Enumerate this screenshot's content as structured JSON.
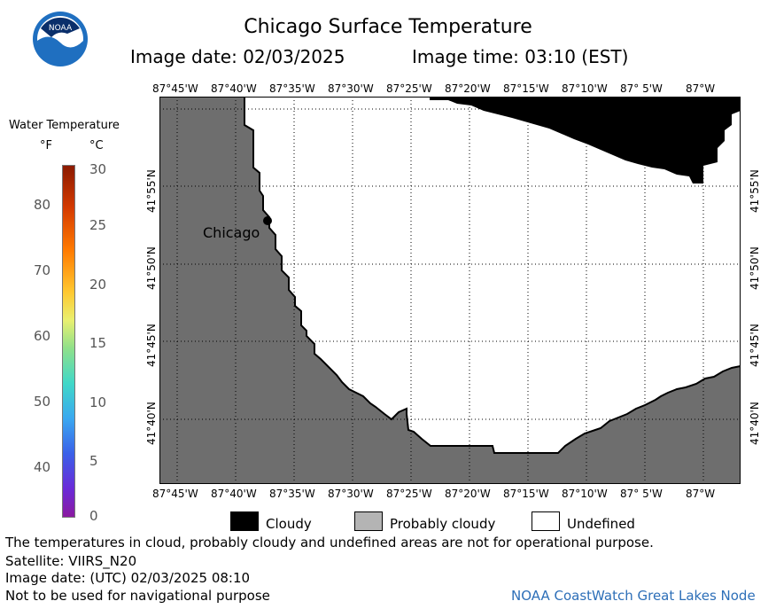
{
  "header": {
    "title": "Chicago Surface Temperature",
    "image_date": "Image date: 02/03/2025",
    "image_time": "Image time: 03:10 (EST)",
    "logo_text": "NOAA"
  },
  "map": {
    "lon_labels": [
      "87°45'W",
      "87°40'W",
      "87°35'W",
      "87°30'W",
      "87°25'W",
      "87°20'W",
      "87°15'W",
      "87°10'W",
      "87° 5'W",
      "87°W"
    ],
    "lat_labels": [
      "41°55'N",
      "41°50'N",
      "41°45'N",
      "41°40'N"
    ],
    "city_label": "Chicago",
    "land_color": "#6e6e6e",
    "cloud_color": "#000000",
    "undefined_color": "#ffffff"
  },
  "colorbar": {
    "title": "Water Temperature",
    "unit_f": "°F",
    "unit_c": "°C",
    "f_ticks": [
      "80",
      "70",
      "60",
      "50",
      "40"
    ],
    "c_ticks": [
      "30",
      "25",
      "20",
      "15",
      "10",
      "5",
      "0"
    ]
  },
  "legend": {
    "cloudy": "Cloudy",
    "probably_cloudy": "Probably cloudy",
    "undefined": "Undefined"
  },
  "footer": {
    "note": "The temperatures in cloud, probably cloudy and undefined areas are not for operational purpose.",
    "satellite": "Satellite: VIIRS_N20",
    "utc_date": "Image date: (UTC) 02/03/2025  08:10",
    "nav_warning": "Not to be used for navigational purpose",
    "credit": "NOAA CoastWatch Great Lakes Node"
  }
}
